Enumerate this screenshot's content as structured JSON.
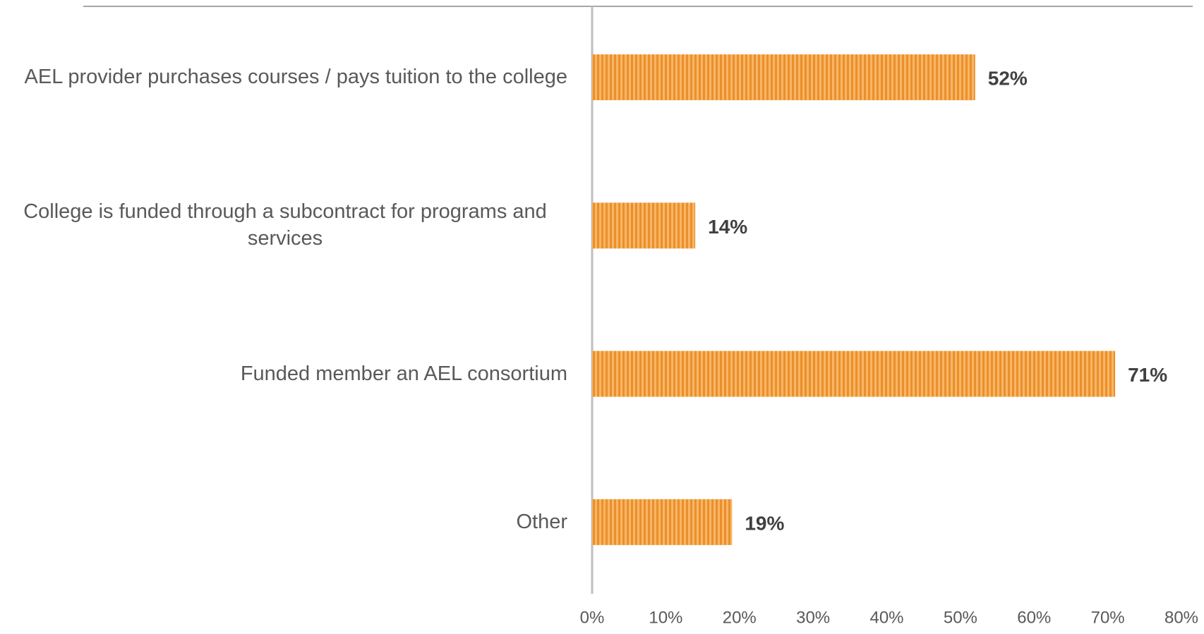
{
  "chart_data": {
    "type": "barh",
    "categories": [
      "AEL provider purchases courses / pays tuition to the college",
      "College is funded through a subcontract for programs and services",
      "Funded member an AEL consortium",
      "Other"
    ],
    "values": [
      52,
      14,
      71,
      19
    ],
    "value_labels": [
      "52%",
      "14%",
      "71%",
      "19%"
    ],
    "color": "#f4a446",
    "xlim": [
      0,
      80
    ],
    "xticks": [
      {
        "value": 0,
        "label": "0%"
      },
      {
        "value": 10,
        "label": "10%"
      },
      {
        "value": 20,
        "label": "20%"
      },
      {
        "value": 30,
        "label": "30%"
      },
      {
        "value": 40,
        "label": "40%"
      },
      {
        "value": 50,
        "label": "50%"
      },
      {
        "value": 60,
        "label": "60%"
      },
      {
        "value": 70,
        "label": "70%"
      },
      {
        "value": 80,
        "label": "80%"
      }
    ],
    "grid": false
  }
}
